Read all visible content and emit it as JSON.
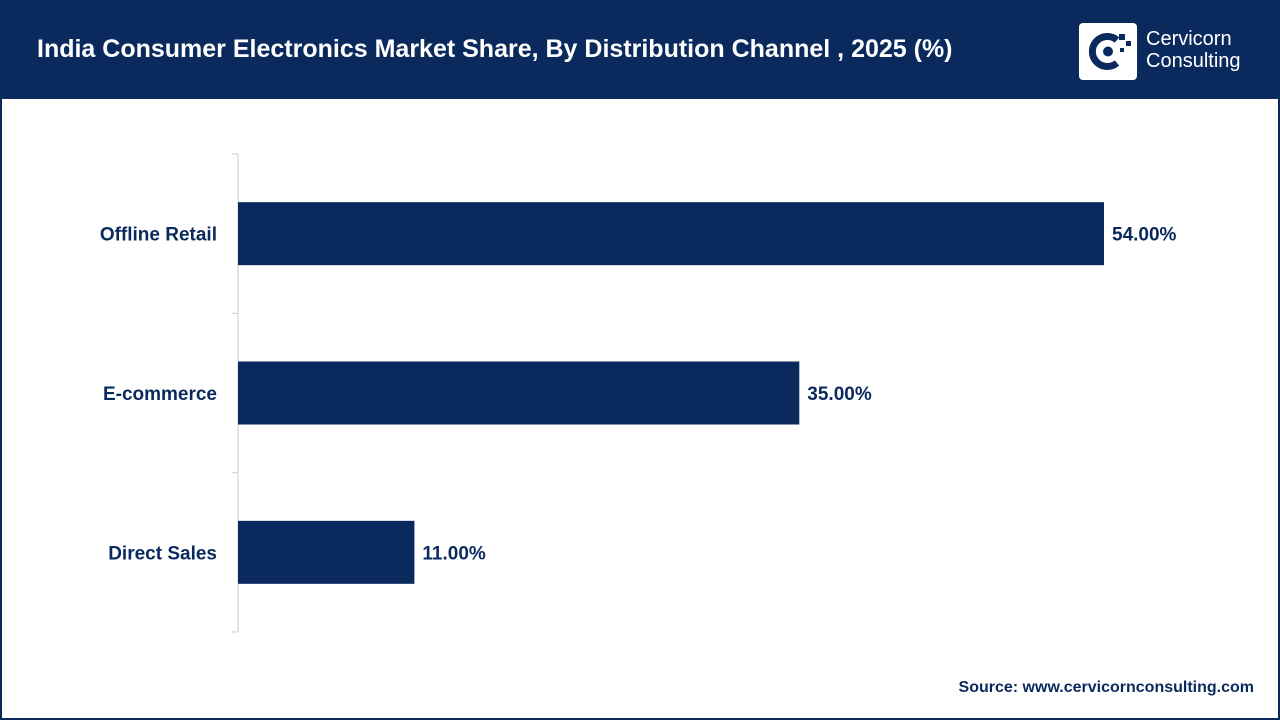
{
  "header": {
    "title": "India Consumer Electronics Market Share, By Distribution Channel , 2025 (%)",
    "logo_line1": "Cervicorn",
    "logo_line2": "Consulting"
  },
  "source": "Source: www.cervicornconsulting.com",
  "colors": {
    "header_bg": "#0a2a5e",
    "bar": "#0a2a5e",
    "text": "#0a2a5e",
    "axis": "#cccccc"
  },
  "chart_data": {
    "type": "bar",
    "orientation": "horizontal",
    "categories": [
      "Offline Retail",
      "E-commerce",
      "Direct Sales"
    ],
    "values": [
      54.0,
      35.0,
      11.0
    ],
    "value_labels": [
      "54.00%",
      "35.00%",
      "11.00%"
    ],
    "xlim": [
      0,
      60
    ],
    "grid": false,
    "legend": "none",
    "title": "India Consumer Electronics Market Share, By Distribution Channel , 2025 (%)"
  }
}
